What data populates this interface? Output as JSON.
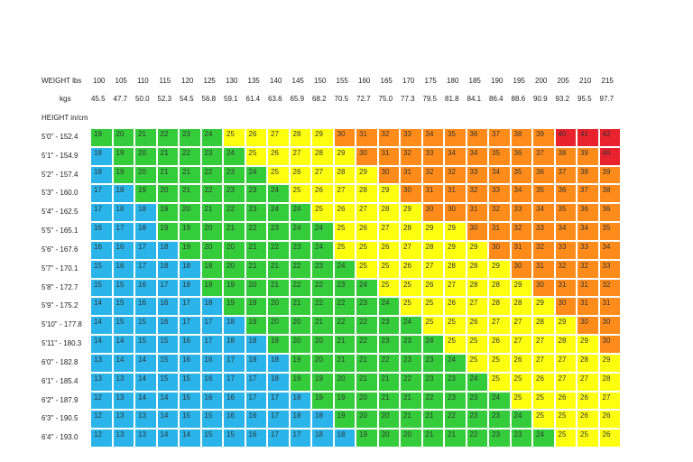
{
  "table": {
    "weight_label": "WEIGHT lbs",
    "kg_label": "kgs",
    "height_label": "HEIGHT in/cm",
    "lbs": [
      100,
      105,
      110,
      115,
      120,
      125,
      130,
      135,
      140,
      145,
      150,
      155,
      160,
      165,
      170,
      175,
      180,
      185,
      190,
      195,
      200,
      205,
      210,
      215
    ],
    "kgs": [
      "45.5",
      "47.7",
      "50.0",
      "52.3",
      "54.5",
      "56.8",
      "59.1",
      "61.4",
      "63.6",
      "65.9",
      "68.2",
      "70.5",
      "72.7",
      "75.0",
      "77.3",
      "79.5",
      "81.8",
      "84.1",
      "86.4",
      "88.6",
      "90.9",
      "93.2",
      "95.5",
      "97.7"
    ],
    "heights": [
      "5'0\" - 152.4",
      "5'1\" - 154.9",
      "5'2\" - 157.4",
      "5'3\" - 160.0",
      "5'4\" - 162.5",
      "5'5\" - 165.1",
      "5'6\" - 167.6",
      "5'7\" - 170.1",
      "5'8\" - 172.7",
      "5'9\" - 175.2",
      "5'10\" - 177.8",
      "5'11\" - 180.3",
      "6'0\" - 182.8",
      "6'1\" - 185.4",
      "6'2\" - 187.9",
      "6'3\" - 190.5",
      "6'4\" - 193.0"
    ],
    "rows": [
      [
        19,
        20,
        21,
        22,
        23,
        24,
        25,
        26,
        27,
        28,
        29,
        30,
        31,
        32,
        33,
        34,
        35,
        36,
        37,
        38,
        39,
        40,
        41,
        42
      ],
      [
        18,
        19,
        20,
        21,
        22,
        23,
        24,
        25,
        26,
        27,
        28,
        29,
        30,
        31,
        32,
        33,
        34,
        34,
        35,
        36,
        37,
        38,
        39,
        40
      ],
      [
        18,
        19,
        20,
        21,
        21,
        22,
        23,
        24,
        25,
        26,
        27,
        28,
        29,
        30,
        31,
        32,
        32,
        33,
        34,
        35,
        36,
        37,
        38,
        39
      ],
      [
        17,
        18,
        19,
        20,
        21,
        22,
        23,
        23,
        24,
        25,
        26,
        27,
        28,
        29,
        30,
        31,
        31,
        32,
        33,
        34,
        35,
        36,
        37,
        38
      ],
      [
        17,
        18,
        18,
        19,
        20,
        21,
        22,
        23,
        24,
        24,
        25,
        26,
        27,
        28,
        29,
        30,
        30,
        31,
        32,
        33,
        34,
        35,
        36,
        36
      ],
      [
        16,
        17,
        18,
        19,
        19,
        20,
        21,
        22,
        23,
        24,
        24,
        25,
        26,
        27,
        28,
        29,
        29,
        30,
        31,
        32,
        33,
        34,
        34,
        35
      ],
      [
        16,
        16,
        17,
        18,
        19,
        20,
        20,
        21,
        22,
        23,
        24,
        25,
        25,
        26,
        27,
        28,
        29,
        29,
        30,
        31,
        32,
        33,
        33,
        34
      ],
      [
        15,
        16,
        17,
        18,
        18,
        19,
        20,
        21,
        21,
        22,
        23,
        24,
        25,
        25,
        26,
        27,
        28,
        28,
        29,
        30,
        31,
        32,
        32,
        33
      ],
      [
        15,
        15,
        16,
        17,
        18,
        19,
        19,
        20,
        21,
        22,
        22,
        23,
        24,
        25,
        25,
        26,
        27,
        28,
        28,
        29,
        30,
        31,
        31,
        32
      ],
      [
        14,
        15,
        16,
        16,
        17,
        18,
        19,
        19,
        20,
        21,
        22,
        22,
        23,
        24,
        25,
        25,
        26,
        27,
        28,
        28,
        29,
        30,
        31,
        31
      ],
      [
        14,
        15,
        15,
        16,
        17,
        17,
        18,
        19,
        20,
        20,
        21,
        22,
        22,
        23,
        24,
        25,
        25,
        26,
        27,
        27,
        28,
        29,
        30,
        30
      ],
      [
        14,
        14,
        15,
        15,
        16,
        17,
        18,
        18,
        19,
        20,
        20,
        21,
        22,
        23,
        23,
        24,
        25,
        25,
        26,
        27,
        27,
        28,
        29,
        30
      ],
      [
        13,
        14,
        14,
        15,
        16,
        16,
        17,
        18,
        18,
        19,
        20,
        21,
        21,
        22,
        23,
        23,
        24,
        25,
        25,
        26,
        27,
        27,
        28,
        29
      ],
      [
        13,
        13,
        14,
        15,
        15,
        16,
        17,
        17,
        18,
        19,
        19,
        20,
        21,
        21,
        22,
        23,
        23,
        24,
        25,
        25,
        26,
        27,
        27,
        28
      ],
      [
        12,
        13,
        14,
        14,
        15,
        16,
        16,
        17,
        17,
        18,
        19,
        19,
        20,
        21,
        21,
        22,
        23,
        23,
        24,
        25,
        25,
        26,
        26,
        27
      ],
      [
        12,
        13,
        13,
        14,
        15,
        15,
        16,
        16,
        17,
        18,
        18,
        19,
        20,
        20,
        21,
        21,
        22,
        23,
        23,
        24,
        25,
        25,
        26,
        26
      ],
      [
        12,
        13,
        13,
        14,
        14,
        15,
        15,
        16,
        17,
        17,
        18,
        18,
        19,
        20,
        20,
        21,
        21,
        22,
        23,
        23,
        24,
        25,
        25,
        26
      ]
    ]
  }
}
